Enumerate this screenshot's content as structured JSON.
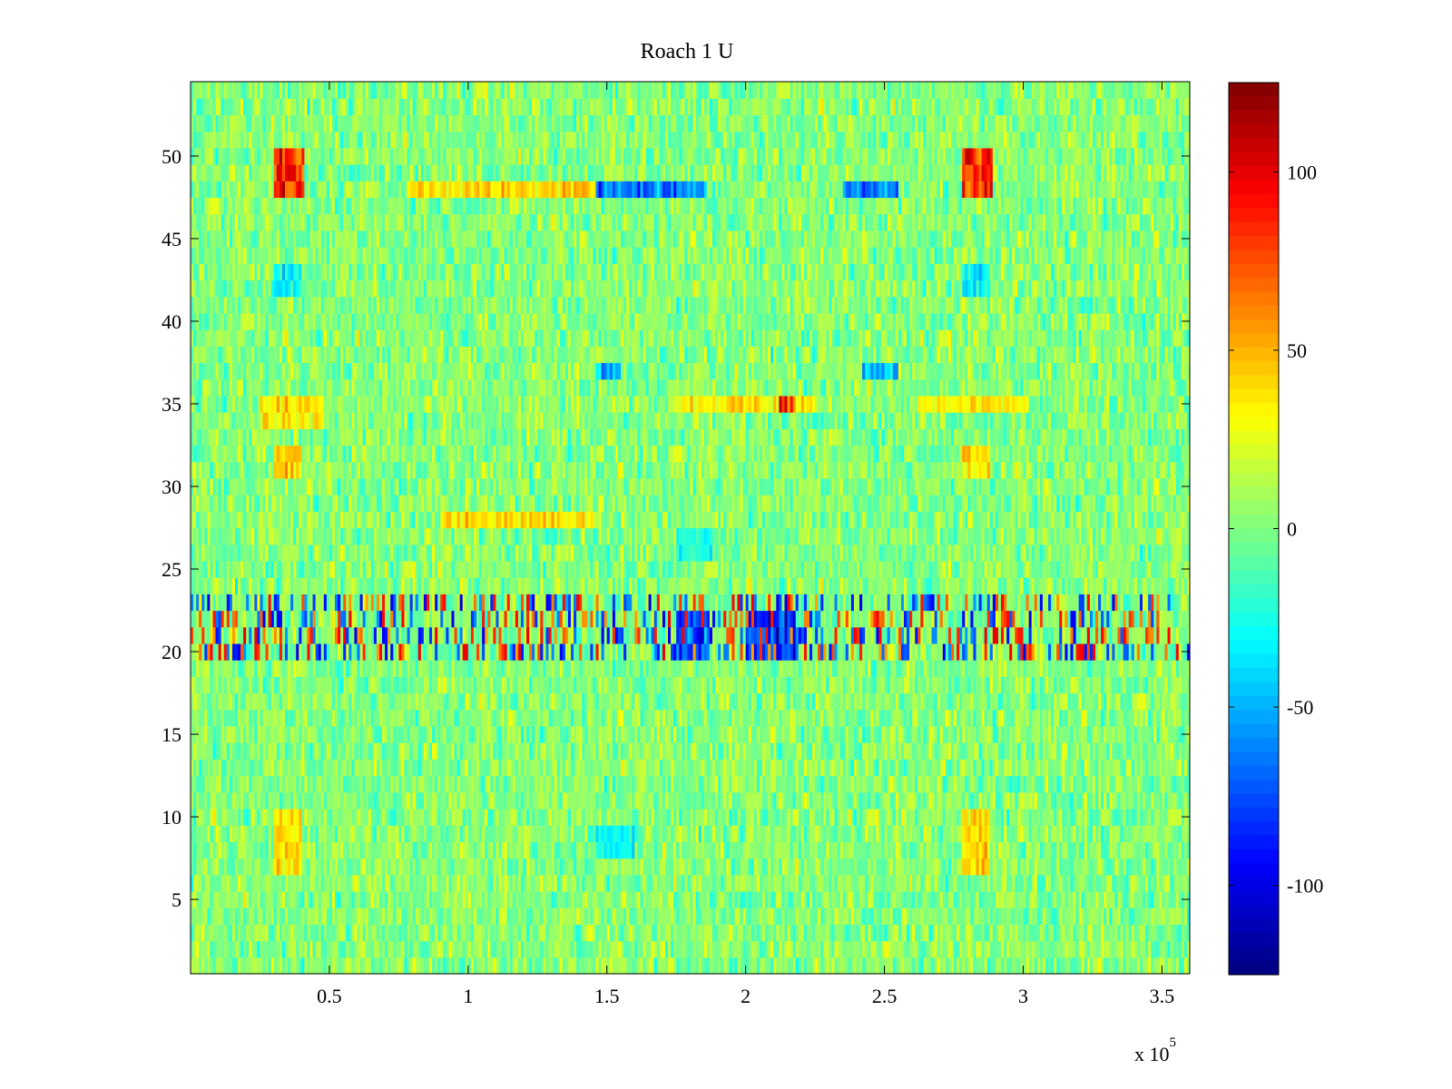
{
  "chart_data": {
    "type": "heatmap",
    "title": "Roach 1 U",
    "xlabel": "",
    "ylabel": "",
    "x_multiplier": "x 10",
    "x_multiplier_exponent": "5",
    "xlim": [
      0,
      3.6
    ],
    "ylim": [
      0.5,
      54.5
    ],
    "x_ticks": [
      0.5,
      1,
      1.5,
      2,
      2.5,
      3,
      3.5
    ],
    "x_tick_labels": [
      "0.5",
      "1",
      "1.5",
      "2",
      "2.5",
      "3",
      "3.5"
    ],
    "y_ticks": [
      5,
      10,
      15,
      20,
      25,
      30,
      35,
      40,
      45,
      50
    ],
    "y_tick_labels": [
      "5",
      "10",
      "15",
      "20",
      "25",
      "30",
      "35",
      "40",
      "45",
      "50"
    ],
    "rows": 54,
    "columns": 360,
    "colormap": "jet",
    "clim": [
      -125,
      125
    ],
    "colorbar": {
      "ticks": [
        -100,
        -50,
        0,
        50,
        100
      ],
      "tick_labels": [
        "-100",
        "-50",
        "0",
        "50",
        "100"
      ]
    },
    "noise_level": 18,
    "features": [
      {
        "x0": 0.3,
        "x1": 0.41,
        "y0": 47.5,
        "y1": 50.5,
        "value": 95
      },
      {
        "x0": 2.78,
        "x1": 2.89,
        "y0": 47.5,
        "y1": 50.5,
        "value": 95
      },
      {
        "x0": 0.78,
        "x1": 1.46,
        "y0": 47.5,
        "y1": 48.5,
        "value": 45
      },
      {
        "x0": 1.46,
        "x1": 1.86,
        "y0": 47.5,
        "y1": 48.5,
        "value": -75
      },
      {
        "x0": 2.35,
        "x1": 2.55,
        "y0": 47.5,
        "y1": 48.5,
        "value": -70
      },
      {
        "x0": 0.3,
        "x1": 0.4,
        "y0": 6.5,
        "y1": 10.5,
        "value": 45
      },
      {
        "x0": 2.78,
        "x1": 2.88,
        "y0": 6.5,
        "y1": 10.5,
        "value": 45
      },
      {
        "x0": 0.3,
        "x1": 0.4,
        "y0": 30.5,
        "y1": 32.5,
        "value": 45
      },
      {
        "x0": 2.78,
        "x1": 2.88,
        "y0": 30.5,
        "y1": 32.5,
        "value": 45
      },
      {
        "x0": 0.3,
        "x1": 0.4,
        "y0": 41.5,
        "y1": 43.5,
        "value": -35
      },
      {
        "x0": 2.78,
        "x1": 2.88,
        "y0": 41.5,
        "y1": 43.5,
        "value": -35
      },
      {
        "x0": 1.75,
        "x1": 1.87,
        "y0": 19.5,
        "y1": 22.5,
        "value": -85
      },
      {
        "x0": 2.0,
        "x1": 2.18,
        "y0": 19.5,
        "y1": 22.5,
        "value": -95
      },
      {
        "x0": 1.46,
        "x1": 1.55,
        "y0": 36.5,
        "y1": 37.5,
        "value": -55
      },
      {
        "x0": 2.42,
        "x1": 2.55,
        "y0": 36.5,
        "y1": 37.5,
        "value": -50
      },
      {
        "x0": 1.75,
        "x1": 2.25,
        "y0": 34.5,
        "y1": 35.5,
        "value": 40
      },
      {
        "x0": 2.12,
        "x1": 2.18,
        "y0": 34.5,
        "y1": 35.5,
        "value": 95
      },
      {
        "x0": 0.25,
        "x1": 0.48,
        "y0": 33.5,
        "y1": 35.5,
        "value": 40
      },
      {
        "x0": 2.62,
        "x1": 3.02,
        "y0": 34.5,
        "y1": 35.5,
        "value": 35
      },
      {
        "x0": 0.9,
        "x1": 1.46,
        "y0": 27.5,
        "y1": 28.5,
        "value": 40
      },
      {
        "x0": 1.46,
        "x1": 1.6,
        "y0": 7.5,
        "y1": 9.5,
        "value": -35
      },
      {
        "x0": 1.75,
        "x1": 1.88,
        "y0": 25.5,
        "y1": 27.5,
        "value": -30
      }
    ],
    "striped_band": {
      "y0": 19.5,
      "y1": 23.5,
      "amplitude": 90
    }
  }
}
